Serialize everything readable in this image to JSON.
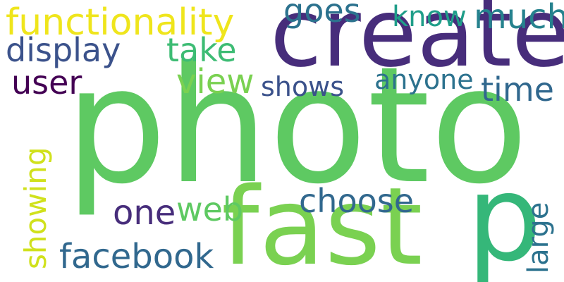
{
  "words": {
    "photo": {
      "text": "photo",
      "color": "#5ec962"
    },
    "create": {
      "text": "create",
      "color": "#472d7b"
    },
    "fast": {
      "text": "fast",
      "color": "#7ad151"
    },
    "p": {
      "text": "p",
      "color": "#35b779"
    },
    "functionality": {
      "text": "functionality",
      "color": "#efe51c"
    },
    "display": {
      "text": "display",
      "color": "#3b528b"
    },
    "take": {
      "text": "take",
      "color": "#3dbc74"
    },
    "goes": {
      "text": "goes",
      "color": "#2c728e"
    },
    "know": {
      "text": "know",
      "color": "#1f9e89"
    },
    "much": {
      "text": "much",
      "color": "#26828e"
    },
    "user": {
      "text": "user",
      "color": "#440154"
    },
    "view": {
      "text": "view",
      "color": "#7ad151"
    },
    "shows": {
      "text": "shows",
      "color": "#3b528b"
    },
    "anyone": {
      "text": "anyone",
      "color": "#2c728e"
    },
    "time": {
      "text": "time",
      "color": "#31688e"
    },
    "choose": {
      "text": "choose",
      "color": "#31688e"
    },
    "one": {
      "text": "one",
      "color": "#472d7b"
    },
    "web": {
      "text": "web",
      "color": "#5ec962"
    },
    "facebook": {
      "text": "facebook",
      "color": "#31688e"
    },
    "showing": {
      "text": "showing",
      "color": "#d0e11c"
    },
    "large": {
      "text": "large",
      "color": "#2c728e"
    }
  }
}
